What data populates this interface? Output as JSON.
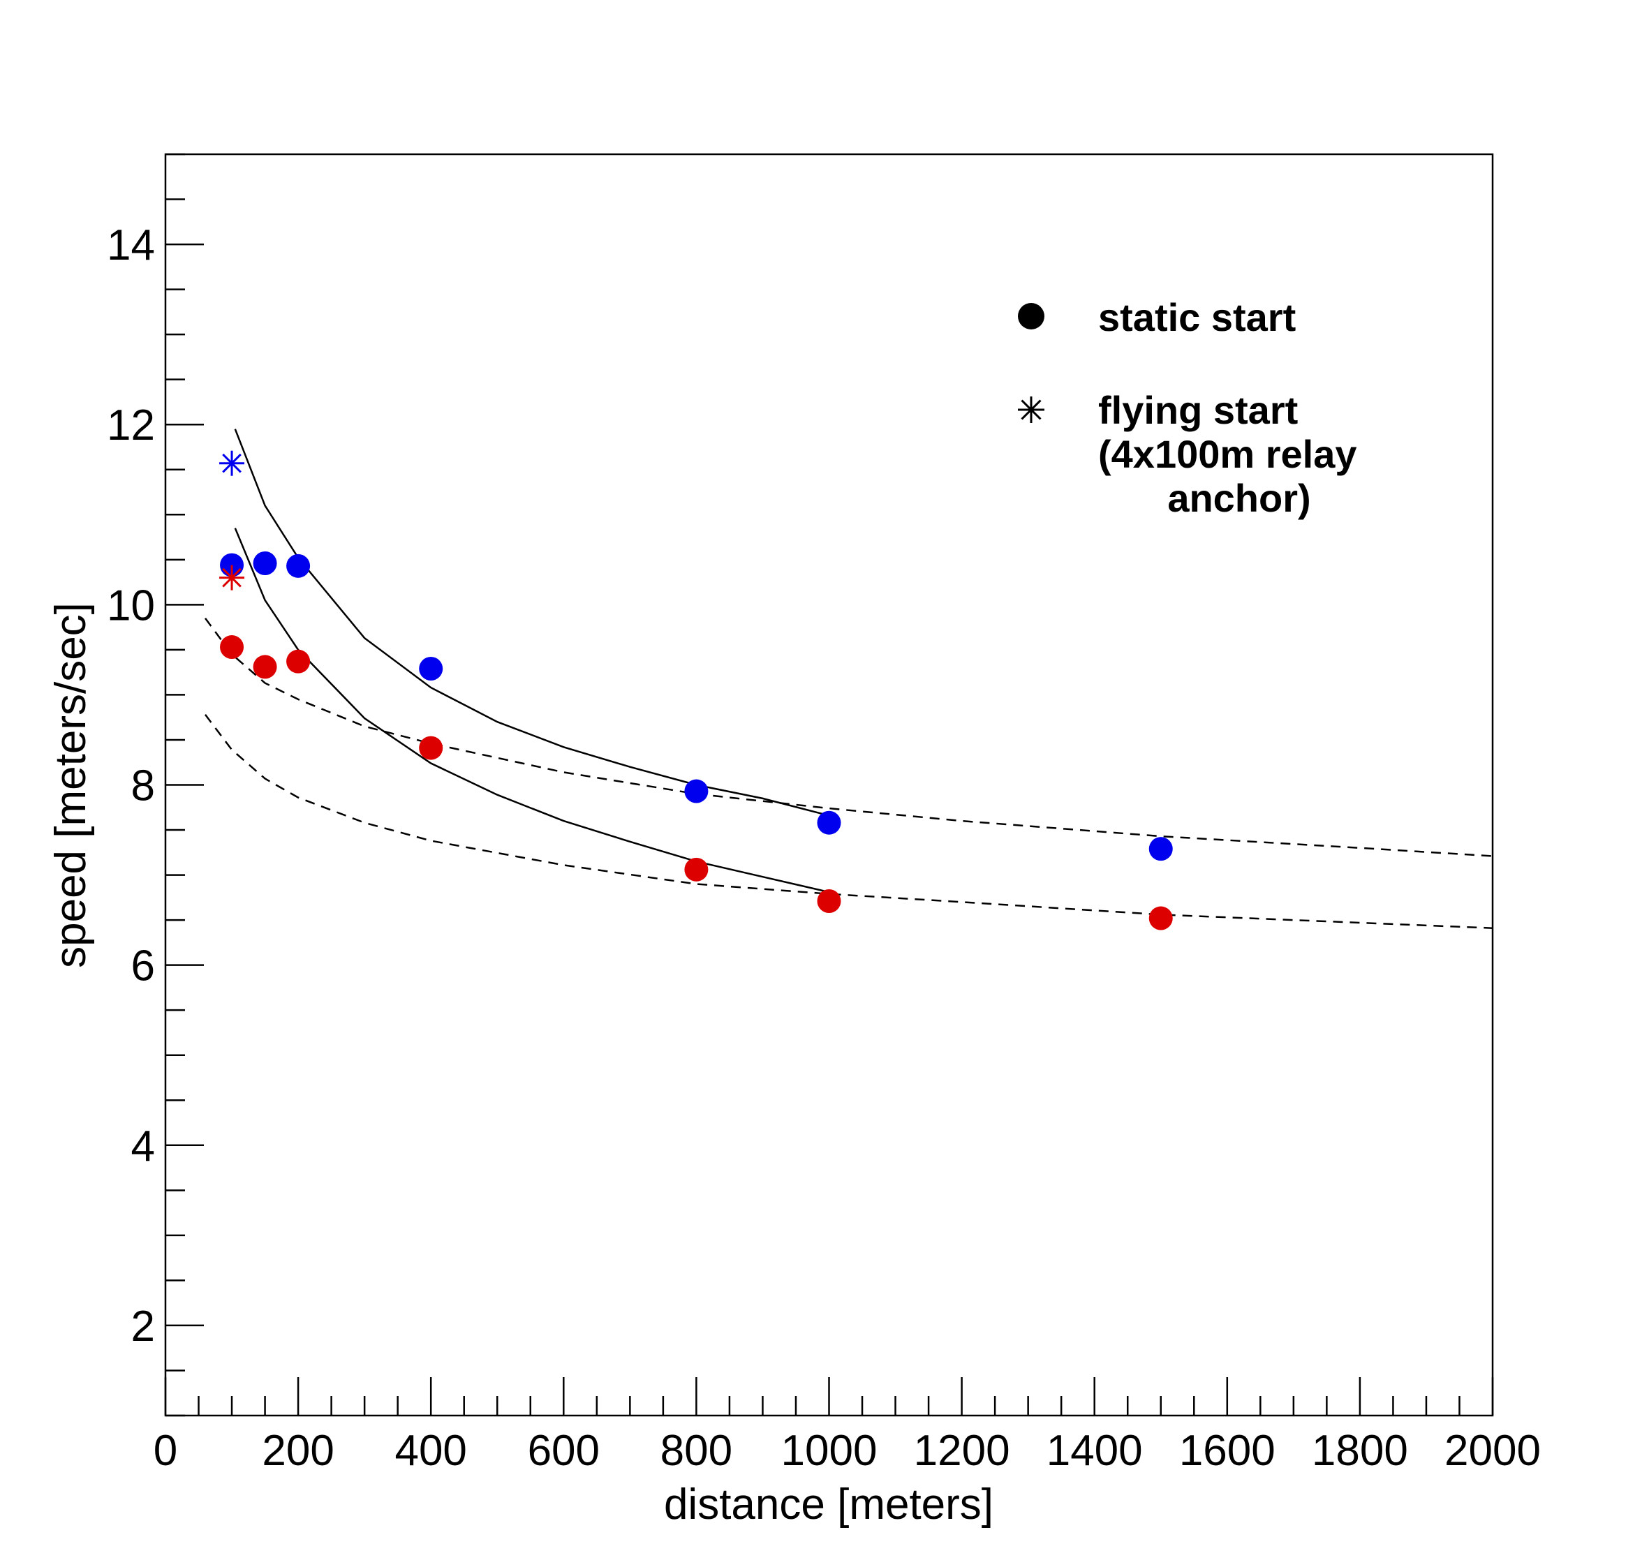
{
  "chart_data": {
    "type": "scatter",
    "title": "",
    "xlabel": "distance [meters]",
    "ylabel": "speed [meters/sec]",
    "xlim": [
      0,
      2000
    ],
    "ylim": [
      1,
      15
    ],
    "x_ticks": [
      "0",
      "200",
      "400",
      "600",
      "800",
      "1000",
      "1200",
      "1400",
      "1600",
      "1800",
      "2000"
    ],
    "y_ticks": [
      "2",
      "4",
      "6",
      "8",
      "10",
      "12",
      "14"
    ],
    "grid": false,
    "legend_position": "top-right",
    "legend": [
      {
        "marker": "circle",
        "label": "static start"
      },
      {
        "marker": "asterisk",
        "label": [
          "flying start",
          "(4x100m relay",
          "anchor)"
        ]
      }
    ],
    "series": [
      {
        "color": "#0000ee",
        "marker": "circle",
        "x": [
          100,
          150,
          200,
          400,
          800,
          1000,
          1500
        ],
        "y": [
          10.44,
          10.46,
          10.43,
          9.29,
          7.93,
          7.58,
          7.29
        ]
      },
      {
        "color": "#dd0000",
        "marker": "circle",
        "x": [
          100,
          150,
          200,
          400,
          800,
          1000,
          1500
        ],
        "y": [
          9.53,
          9.31,
          9.37,
          8.41,
          7.06,
          6.71,
          6.52
        ]
      },
      {
        "color": "#0000ee",
        "marker": "asterisk",
        "x": [
          100
        ],
        "y": [
          11.57
        ]
      },
      {
        "color": "#dd0000",
        "marker": "asterisk",
        "x": [
          100
        ],
        "y": [
          10.3
        ]
      }
    ],
    "curves": [
      {
        "style": "solid",
        "color": "#000000",
        "x": [
          105,
          150,
          200,
          300,
          400,
          500,
          600,
          700,
          800,
          900,
          1000
        ],
        "y": [
          11.95,
          11.1,
          10.52,
          9.63,
          9.08,
          8.7,
          8.42,
          8.2,
          8.0,
          7.85,
          7.66
        ]
      },
      {
        "style": "solid",
        "color": "#000000",
        "x": [
          105,
          150,
          200,
          300,
          400,
          500,
          600,
          700,
          800,
          900,
          1000
        ],
        "y": [
          10.85,
          10.05,
          9.5,
          8.74,
          8.24,
          7.89,
          7.6,
          7.37,
          7.15,
          6.98,
          6.81
        ]
      },
      {
        "style": "dashed",
        "color": "#000000",
        "x": [
          60,
          100,
          150,
          200,
          300,
          400,
          600,
          800,
          1000,
          1200,
          1500,
          1800,
          2000
        ],
        "y": [
          9.85,
          9.45,
          9.13,
          8.95,
          8.65,
          8.46,
          8.14,
          7.9,
          7.74,
          7.6,
          7.43,
          7.3,
          7.21
        ]
      },
      {
        "style": "dashed",
        "color": "#000000",
        "x": [
          60,
          100,
          150,
          200,
          300,
          400,
          600,
          800,
          1000,
          1200,
          1500,
          1800,
          2000
        ],
        "y": [
          8.78,
          8.39,
          8.07,
          7.86,
          7.58,
          7.38,
          7.11,
          6.9,
          6.79,
          6.7,
          6.56,
          6.47,
          6.41
        ]
      }
    ]
  }
}
